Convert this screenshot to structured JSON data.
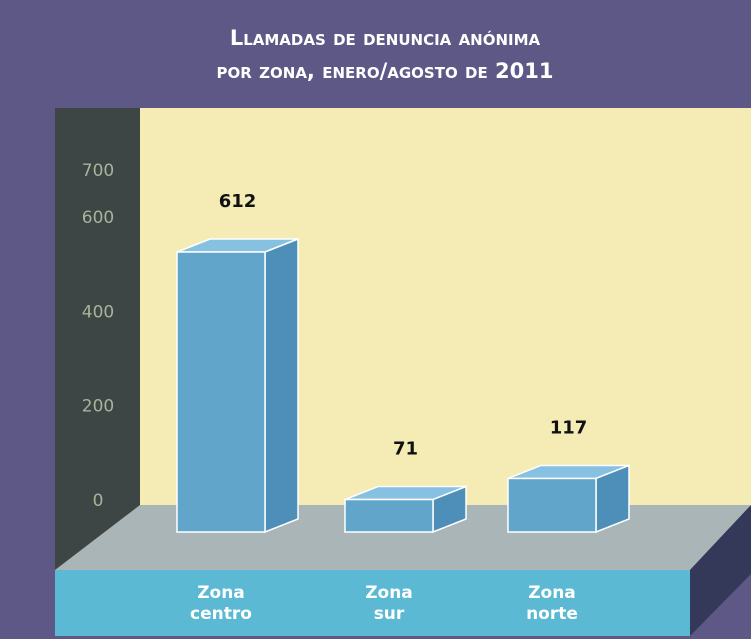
{
  "chart_data": {
    "type": "bar",
    "title": [
      "Llamadas de denuncia anónima",
      "por zona, enero/agosto de 2011"
    ],
    "categories": [
      "Zona centro",
      "Zona sur",
      "Zona norte"
    ],
    "values": [
      612,
      71,
      117
    ],
    "color": "#62a5cb",
    "ylim": [
      0,
      700
    ],
    "yticks": [
      0,
      200,
      400,
      600,
      700
    ]
  }
}
